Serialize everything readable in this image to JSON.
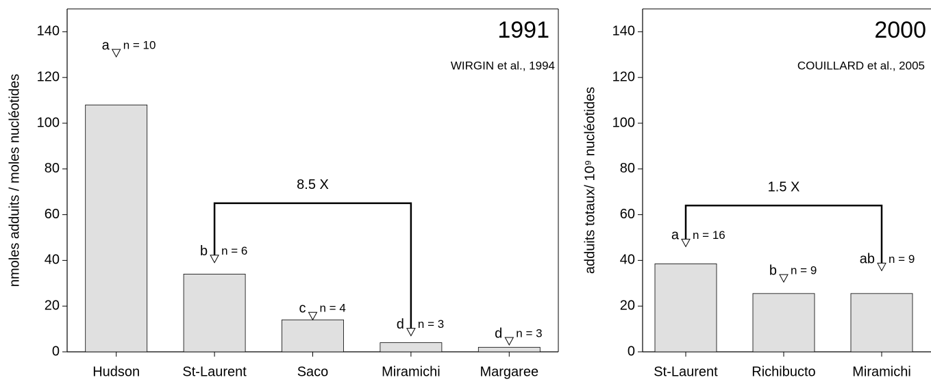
{
  "chart_data": [
    {
      "type": "bar",
      "title": "1991",
      "subtitle": "WIRGIN et al., 1994",
      "ylabel": "nmoles adduits / moles nucléotides",
      "categories": [
        "Hudson",
        "St-Laurent",
        "Saco",
        "Miramichi",
        "Margaree"
      ],
      "values": [
        108,
        34,
        14,
        4,
        2
      ],
      "markers": [
        129,
        39,
        14,
        7,
        3
      ],
      "letters": [
        "a",
        "b",
        "c",
        "d",
        "d"
      ],
      "n_labels": [
        "n = 10",
        "n = 6",
        "n = 4",
        "n = 3",
        "n = 3"
      ],
      "color": "#e0e0e0",
      "ylim": [
        0,
        150
      ],
      "yticks": [
        0,
        20,
        40,
        60,
        80,
        100,
        120,
        140
      ],
      "bracket": {
        "label": "8.5 X",
        "between": [
          "St-Laurent",
          "Miramichi"
        ],
        "y": 65
      }
    },
    {
      "type": "bar",
      "title": "2000",
      "subtitle": "COUILLARD et al., 2005",
      "ylabel": "adduits totaux/ 10⁹ nucléotides",
      "categories": [
        "St-Laurent",
        "Richibucto",
        "Miramichi"
      ],
      "values": [
        38.5,
        25.5,
        25.5
      ],
      "markers": [
        46,
        30.5,
        35.5
      ],
      "letters": [
        "a",
        "b",
        "ab"
      ],
      "n_labels": [
        "n = 16",
        "n = 9",
        "n = 9"
      ],
      "color": "#e0e0e0",
      "ylim": [
        0,
        150
      ],
      "yticks": [
        0,
        20,
        40,
        60,
        80,
        100,
        120,
        140
      ],
      "bracket": {
        "label": "1.5 X",
        "between": [
          "St-Laurent",
          "Miramichi"
        ],
        "y": 64
      }
    }
  ]
}
